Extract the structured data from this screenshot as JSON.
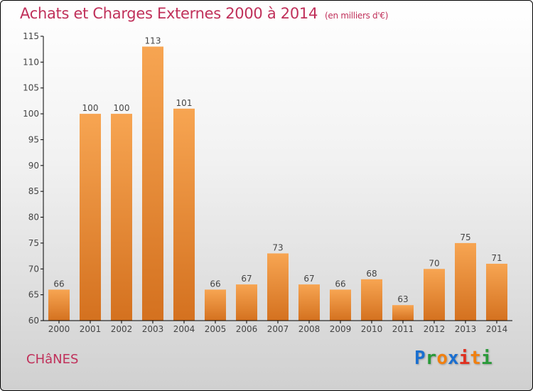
{
  "title": "Achats et Charges Externes 2000 à 2014",
  "subtitle": "(en milliers d'€)",
  "city": "CHâNES",
  "logo": "Proxiti",
  "colors": {
    "bar_top": "#f7a552",
    "bar_bottom": "#d4711f",
    "title": "#c0305a"
  },
  "chart_data": {
    "type": "bar",
    "title": "Achats et Charges Externes 2000 à 2014",
    "categories": [
      "2000",
      "2001",
      "2002",
      "2003",
      "2004",
      "2005",
      "2006",
      "2007",
      "2008",
      "2009",
      "2010",
      "2011",
      "2012",
      "2013",
      "2014"
    ],
    "values": [
      66,
      100,
      100,
      113,
      101,
      66,
      67,
      73,
      67,
      66,
      68,
      63,
      70,
      75,
      71
    ],
    "ylim": [
      60,
      115
    ],
    "yticks": [
      60,
      65,
      70,
      75,
      80,
      85,
      90,
      95,
      100,
      105,
      110,
      115
    ],
    "xlabel": "",
    "ylabel": ""
  }
}
